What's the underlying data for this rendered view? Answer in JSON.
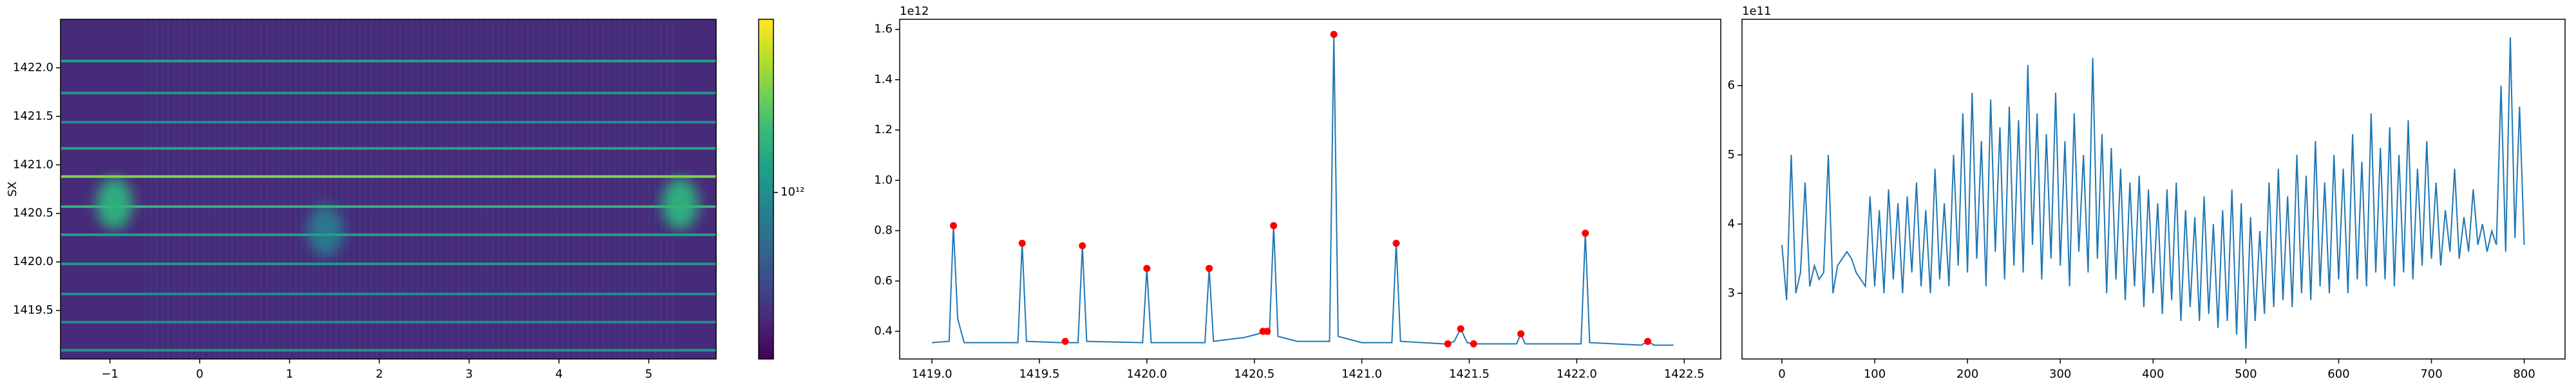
{
  "chart_data": [
    {
      "type": "heatmap",
      "ylabel": "SX",
      "colormap": "viridis",
      "log_color": true,
      "xlim": [
        -1.55,
        5.75
      ],
      "ylim": [
        1419.0,
        1422.5
      ],
      "xticks": [
        {
          "value": -1,
          "label": "−1"
        },
        0,
        1,
        2,
        3,
        4,
        5
      ],
      "yticks": [
        1419.5,
        {
          "value": 1420,
          "label": "1420.0"
        },
        1420.5,
        {
          "value": 1421,
          "label": "1421.0"
        },
        1421.5,
        {
          "value": 1422,
          "label": "1422.0"
        }
      ],
      "background": 400000000000,
      "rows": [
        {
          "y": 1422.07,
          "value": 1200000000000
        },
        {
          "y": 1421.74,
          "value": 1100000000000
        },
        {
          "y": 1421.44,
          "value": 1000000000000
        },
        {
          "y": 1421.17,
          "value": 1300000000000
        },
        {
          "y": 1420.88,
          "value": 2200000000000
        },
        {
          "y": 1420.57,
          "value": 1500000000000
        },
        {
          "y": 1420.28,
          "value": 1200000000000
        },
        {
          "y": 1419.98,
          "value": 1100000000000
        },
        {
          "y": 1419.67,
          "value": 1000000000000
        },
        {
          "y": 1419.38,
          "value": 1000000000000
        },
        {
          "y": 1419.09,
          "value": 1100000000000
        }
      ],
      "blobs": [
        {
          "x": -0.95,
          "y": 1420.6,
          "value": 1400000000000
        },
        {
          "x": 5.35,
          "y": 1420.6,
          "value": 1400000000000
        },
        {
          "x": 1.4,
          "y": 1420.32,
          "value": 800000000000
        }
      ],
      "clim": [
        300000000000,
        3500000000000
      ],
      "cticks": [
        {
          "value": 1000000000000,
          "label": "10¹²"
        }
      ]
    },
    {
      "type": "line",
      "offset_text": "1e12",
      "xlim": [
        1418.85,
        1422.67
      ],
      "ylim": [
        0.29,
        1.64
      ],
      "xticks": [
        {
          "value": 1419,
          "label": "1419.0"
        },
        1419.5,
        {
          "value": 1420,
          "label": "1420.0"
        },
        1420.5,
        {
          "value": 1421,
          "label": "1421.0"
        },
        1421.5,
        {
          "value": 1422,
          "label": "1422.0"
        },
        1422.5
      ],
      "yticks": [
        0.4,
        0.6,
        0.8,
        {
          "value": 1,
          "label": "1.0"
        },
        1.2,
        1.4,
        1.6
      ],
      "series": [
        {
          "type": "line",
          "color": "#1f77b4",
          "x": [
            1419.0,
            1419.08,
            1419.1,
            1419.12,
            1419.15,
            1419.4,
            1419.42,
            1419.44,
            1419.6,
            1419.62,
            1419.64,
            1419.68,
            1419.7,
            1419.72,
            1419.98,
            1420.0,
            1420.02,
            1420.27,
            1420.29,
            1420.31,
            1420.4,
            1420.45,
            1420.52,
            1420.54,
            1420.56,
            1420.57,
            1420.59,
            1420.61,
            1420.7,
            1420.85,
            1420.87,
            1420.89,
            1421.0,
            1421.14,
            1421.16,
            1421.18,
            1421.38,
            1421.4,
            1421.43,
            1421.46,
            1421.49,
            1421.52,
            1421.72,
            1421.74,
            1421.76,
            1422.02,
            1422.04,
            1422.06,
            1422.3,
            1422.33,
            1422.36,
            1422.45
          ],
          "values": [
            0.355,
            0.36,
            0.82,
            0.45,
            0.355,
            0.355,
            0.75,
            0.36,
            0.355,
            0.36,
            0.355,
            0.355,
            0.74,
            0.36,
            0.355,
            0.65,
            0.355,
            0.355,
            0.65,
            0.36,
            0.37,
            0.375,
            0.39,
            0.4,
            0.4,
            0.39,
            0.82,
            0.38,
            0.36,
            0.36,
            1.58,
            0.38,
            0.355,
            0.355,
            0.75,
            0.36,
            0.35,
            0.35,
            0.36,
            0.41,
            0.355,
            0.35,
            0.35,
            0.39,
            0.35,
            0.35,
            0.79,
            0.355,
            0.345,
            0.36,
            0.345,
            0.345
          ]
        },
        {
          "type": "scatter",
          "color": "red",
          "x": [
            1419.1,
            1419.42,
            1419.62,
            1419.7,
            1420.0,
            1420.29,
            1420.54,
            1420.56,
            1420.59,
            1420.87,
            1421.16,
            1421.4,
            1421.46,
            1421.52,
            1421.74,
            1422.04,
            1422.33
          ],
          "values": [
            0.82,
            0.75,
            0.36,
            0.74,
            0.65,
            0.65,
            0.4,
            0.4,
            0.82,
            1.58,
            0.75,
            0.35,
            0.41,
            0.35,
            0.39,
            0.79,
            0.36
          ]
        }
      ]
    },
    {
      "type": "line",
      "offset_text": "1e11",
      "xlim": [
        -43,
        844
      ],
      "ylim": [
        2.05,
        6.96
      ],
      "xticks": [
        0,
        100,
        200,
        300,
        400,
        500,
        600,
        700,
        800
      ],
      "yticks": [
        3,
        4,
        5,
        6
      ],
      "x": [
        0,
        5,
        10,
        15,
        20,
        25,
        30,
        35,
        40,
        45,
        50,
        55,
        60,
        65,
        70,
        75,
        80,
        85,
        90,
        95,
        100,
        105,
        110,
        115,
        120,
        125,
        130,
        135,
        140,
        145,
        150,
        155,
        160,
        165,
        170,
        175,
        180,
        185,
        190,
        195,
        200,
        205,
        210,
        215,
        220,
        225,
        230,
        235,
        240,
        245,
        250,
        255,
        260,
        265,
        270,
        275,
        280,
        285,
        290,
        295,
        300,
        305,
        310,
        315,
        320,
        325,
        330,
        335,
        340,
        345,
        350,
        355,
        360,
        365,
        370,
        375,
        380,
        385,
        390,
        395,
        400,
        405,
        410,
        415,
        420,
        425,
        430,
        435,
        440,
        445,
        450,
        455,
        460,
        465,
        470,
        475,
        480,
        485,
        490,
        495,
        500,
        505,
        510,
        515,
        520,
        525,
        530,
        535,
        540,
        545,
        550,
        555,
        560,
        565,
        570,
        575,
        580,
        585,
        590,
        595,
        600,
        605,
        610,
        615,
        620,
        625,
        630,
        635,
        640,
        645,
        650,
        655,
        660,
        665,
        670,
        675,
        680,
        685,
        690,
        695,
        700,
        705,
        710,
        715,
        720,
        725,
        730,
        735,
        740,
        745,
        750,
        755,
        760,
        765,
        770,
        775,
        780,
        785,
        790,
        795,
        800
      ],
      "series": [
        {
          "type": "line",
          "color": "#1f77b4",
          "values": [
            3.7,
            2.9,
            5.0,
            3.0,
            3.3,
            4.6,
            3.1,
            3.4,
            3.2,
            3.3,
            5.0,
            3.0,
            3.4,
            3.5,
            3.6,
            3.5,
            3.3,
            3.2,
            3.1,
            4.4,
            3.1,
            4.2,
            3.0,
            4.5,
            3.2,
            4.3,
            3.0,
            4.4,
            3.3,
            4.6,
            3.1,
            4.2,
            3.0,
            4.8,
            3.2,
            4.3,
            3.1,
            5.0,
            3.4,
            5.6,
            3.3,
            5.9,
            3.5,
            5.2,
            3.1,
            5.8,
            3.6,
            5.4,
            3.2,
            5.7,
            3.4,
            5.5,
            3.3,
            6.3,
            3.7,
            5.6,
            3.2,
            5.3,
            3.5,
            5.9,
            3.4,
            5.2,
            3.1,
            5.6,
            3.6,
            5.0,
            3.3,
            6.4,
            3.5,
            5.3,
            3.0,
            5.1,
            3.2,
            4.8,
            2.9,
            4.6,
            3.1,
            4.7,
            2.8,
            4.5,
            3.0,
            4.3,
            2.7,
            4.5,
            2.9,
            4.6,
            2.6,
            4.2,
            2.8,
            4.1,
            2.6,
            4.4,
            2.7,
            4.0,
            2.5,
            4.2,
            2.6,
            4.5,
            2.4,
            4.3,
            2.2,
            4.1,
            2.6,
            3.9,
            2.7,
            4.6,
            2.8,
            4.8,
            2.9,
            4.4,
            2.8,
            5.0,
            3.0,
            4.7,
            2.9,
            5.2,
            3.1,
            4.6,
            3.0,
            5.0,
            3.2,
            4.8,
            3.0,
            5.3,
            3.2,
            4.9,
            3.1,
            5.6,
            3.3,
            5.1,
            3.2,
            5.4,
            3.1,
            5.0,
            3.3,
            5.5,
            3.2,
            4.8,
            3.4,
            5.2,
            3.5,
            4.6,
            3.4,
            4.2,
            3.6,
            4.8,
            3.5,
            4.1,
            3.6,
            4.5,
            3.7,
            4.0,
            3.6,
            3.9,
            3.7,
            6.0,
            3.6,
            6.7,
            3.8,
            5.7,
            3.7
          ]
        }
      ]
    }
  ]
}
